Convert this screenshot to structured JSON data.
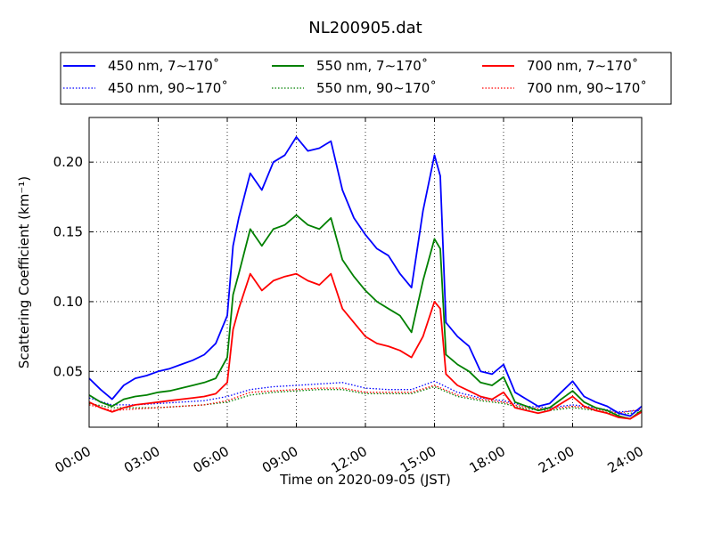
{
  "chart_data": {
    "type": "line",
    "title": "NL200905.dat",
    "xlabel": "Time on 2020-09-05 (JST)",
    "ylabel": "Scattering Coefficient (km⁻¹)",
    "xlim": [
      "00:00",
      "24:00"
    ],
    "ylim": [
      0.01,
      0.232
    ],
    "grid": true,
    "legend_position": "top",
    "x_ticks": [
      "00:00",
      "03:00",
      "06:00",
      "09:00",
      "12:00",
      "15:00",
      "18:00",
      "21:00",
      "24:00"
    ],
    "y_ticks": [
      "0.05",
      "0.10",
      "0.15",
      "0.20"
    ],
    "colors": {
      "450": "#0000ff",
      "550": "#008000",
      "700": "#ff0000"
    },
    "series": [
      {
        "name": "450 nm, 7∼170˚",
        "color": "#0000ff",
        "style": "solid",
        "x": [
          "00:00",
          "00:30",
          "01:00",
          "01:30",
          "02:00",
          "02:30",
          "03:00",
          "03:30",
          "04:00",
          "04:30",
          "05:00",
          "05:30",
          "06:00",
          "06:15",
          "06:30",
          "07:00",
          "07:30",
          "08:00",
          "08:30",
          "09:00",
          "09:30",
          "10:00",
          "10:30",
          "11:00",
          "11:30",
          "12:00",
          "12:30",
          "13:00",
          "13:30",
          "14:00",
          "14:30",
          "15:00",
          "15:15",
          "15:30",
          "16:00",
          "16:30",
          "17:00",
          "17:30",
          "18:00",
          "18:30",
          "19:00",
          "19:30",
          "20:00",
          "20:30",
          "21:00",
          "21:30",
          "22:00",
          "22:30",
          "23:00",
          "23:30",
          "24:00"
        ],
        "y": [
          0.045,
          0.037,
          0.03,
          0.04,
          0.045,
          0.047,
          0.05,
          0.052,
          0.055,
          0.058,
          0.062,
          0.07,
          0.09,
          0.14,
          0.16,
          0.192,
          0.18,
          0.2,
          0.205,
          0.218,
          0.208,
          0.21,
          0.215,
          0.18,
          0.16,
          0.148,
          0.138,
          0.133,
          0.12,
          0.11,
          0.165,
          0.205,
          0.19,
          0.085,
          0.075,
          0.068,
          0.05,
          0.048,
          0.055,
          0.035,
          0.03,
          0.025,
          0.027,
          0.035,
          0.043,
          0.032,
          0.028,
          0.025,
          0.02,
          0.018,
          0.025
        ]
      },
      {
        "name": "450 nm, 90∼170˚",
        "color": "#0000ff",
        "style": "dotted",
        "x": [
          "00:00",
          "01:00",
          "02:00",
          "03:00",
          "04:00",
          "05:00",
          "06:00",
          "07:00",
          "08:00",
          "09:00",
          "10:00",
          "11:00",
          "12:00",
          "13:00",
          "14:00",
          "15:00",
          "16:00",
          "17:00",
          "18:00",
          "19:00",
          "20:00",
          "21:00",
          "22:00",
          "23:00",
          "24:00"
        ],
        "y": [
          0.031,
          0.026,
          0.026,
          0.027,
          0.028,
          0.029,
          0.032,
          0.037,
          0.039,
          0.04,
          0.041,
          0.042,
          0.038,
          0.037,
          0.037,
          0.043,
          0.035,
          0.031,
          0.029,
          0.025,
          0.024,
          0.026,
          0.024,
          0.021,
          0.022
        ]
      },
      {
        "name": "550 nm, 7∼170˚",
        "color": "#008000",
        "style": "solid",
        "x": [
          "00:00",
          "00:30",
          "01:00",
          "01:30",
          "02:00",
          "02:30",
          "03:00",
          "03:30",
          "04:00",
          "04:30",
          "05:00",
          "05:30",
          "06:00",
          "06:15",
          "06:30",
          "07:00",
          "07:30",
          "08:00",
          "08:30",
          "09:00",
          "09:30",
          "10:00",
          "10:30",
          "11:00",
          "11:30",
          "12:00",
          "12:30",
          "13:00",
          "13:30",
          "14:00",
          "14:30",
          "15:00",
          "15:15",
          "15:30",
          "16:00",
          "16:30",
          "17:00",
          "17:30",
          "18:00",
          "18:30",
          "19:00",
          "19:30",
          "20:00",
          "20:30",
          "21:00",
          "21:30",
          "22:00",
          "22:30",
          "23:00",
          "23:30",
          "24:00"
        ],
        "y": [
          0.033,
          0.028,
          0.025,
          0.03,
          0.032,
          0.033,
          0.035,
          0.036,
          0.038,
          0.04,
          0.042,
          0.045,
          0.06,
          0.105,
          0.12,
          0.152,
          0.14,
          0.152,
          0.155,
          0.162,
          0.155,
          0.152,
          0.16,
          0.13,
          0.118,
          0.108,
          0.1,
          0.095,
          0.09,
          0.078,
          0.115,
          0.145,
          0.138,
          0.062,
          0.055,
          0.05,
          0.042,
          0.04,
          0.046,
          0.028,
          0.025,
          0.022,
          0.024,
          0.03,
          0.036,
          0.028,
          0.024,
          0.022,
          0.018,
          0.016,
          0.022
        ]
      },
      {
        "name": "550 nm, 90∼170˚",
        "color": "#008000",
        "style": "dotted",
        "x": [
          "00:00",
          "01:00",
          "02:00",
          "03:00",
          "04:00",
          "05:00",
          "06:00",
          "07:00",
          "08:00",
          "09:00",
          "10:00",
          "11:00",
          "12:00",
          "13:00",
          "14:00",
          "15:00",
          "16:00",
          "17:00",
          "18:00",
          "19:00",
          "20:00",
          "21:00",
          "22:00",
          "23:00",
          "24:00"
        ],
        "y": [
          0.027,
          0.024,
          0.024,
          0.024,
          0.025,
          0.026,
          0.028,
          0.033,
          0.035,
          0.036,
          0.037,
          0.037,
          0.034,
          0.034,
          0.034,
          0.039,
          0.032,
          0.029,
          0.027,
          0.023,
          0.022,
          0.024,
          0.022,
          0.019,
          0.021
        ]
      },
      {
        "name": "700 nm, 7∼170˚",
        "color": "#ff0000",
        "style": "solid",
        "x": [
          "00:00",
          "00:30",
          "01:00",
          "01:30",
          "02:00",
          "02:30",
          "03:00",
          "03:30",
          "04:00",
          "04:30",
          "05:00",
          "05:30",
          "06:00",
          "06:15",
          "06:30",
          "07:00",
          "07:30",
          "08:00",
          "08:30",
          "09:00",
          "09:30",
          "10:00",
          "10:30",
          "11:00",
          "11:30",
          "12:00",
          "12:30",
          "13:00",
          "13:30",
          "14:00",
          "14:30",
          "15:00",
          "15:15",
          "15:30",
          "16:00",
          "16:30",
          "17:00",
          "17:30",
          "18:00",
          "18:30",
          "19:00",
          "19:30",
          "20:00",
          "20:30",
          "21:00",
          "21:30",
          "22:00",
          "22:30",
          "23:00",
          "23:30",
          "24:00"
        ],
        "y": [
          0.028,
          0.024,
          0.021,
          0.024,
          0.026,
          0.027,
          0.028,
          0.029,
          0.03,
          0.031,
          0.032,
          0.034,
          0.042,
          0.08,
          0.095,
          0.12,
          0.108,
          0.115,
          0.118,
          0.12,
          0.115,
          0.112,
          0.12,
          0.095,
          0.085,
          0.075,
          0.07,
          0.068,
          0.065,
          0.06,
          0.075,
          0.1,
          0.095,
          0.048,
          0.04,
          0.036,
          0.032,
          0.03,
          0.035,
          0.024,
          0.022,
          0.02,
          0.022,
          0.027,
          0.032,
          0.025,
          0.022,
          0.02,
          0.017,
          0.016,
          0.021
        ]
      },
      {
        "name": "700 nm, 90∼170˚",
        "color": "#ff0000",
        "style": "dotted",
        "x": [
          "00:00",
          "01:00",
          "02:00",
          "03:00",
          "04:00",
          "05:00",
          "06:00",
          "07:00",
          "08:00",
          "09:00",
          "10:00",
          "11:00",
          "12:00",
          "13:00",
          "14:00",
          "15:00",
          "16:00",
          "17:00",
          "18:00",
          "19:00",
          "20:00",
          "21:00",
          "22:00",
          "23:00",
          "24:00"
        ],
        "y": [
          0.026,
          0.022,
          0.023,
          0.024,
          0.025,
          0.026,
          0.029,
          0.035,
          0.036,
          0.037,
          0.038,
          0.038,
          0.035,
          0.035,
          0.035,
          0.04,
          0.033,
          0.03,
          0.028,
          0.024,
          0.023,
          0.025,
          0.023,
          0.02,
          0.023
        ]
      }
    ]
  }
}
